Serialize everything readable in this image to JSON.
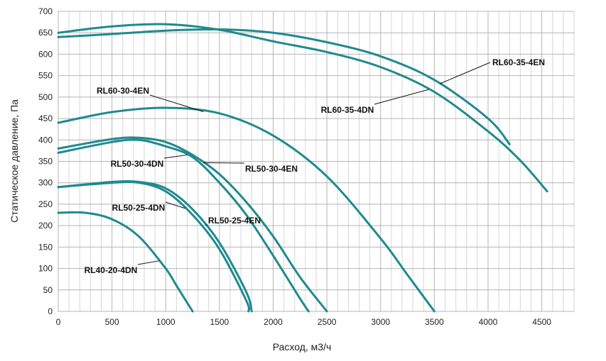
{
  "chart_data": {
    "type": "line",
    "xlabel": "Расход, м3/ч",
    "ylabel": "Статическое давление, Па",
    "xlim": [
      0,
      4800
    ],
    "ylim": [
      0,
      700
    ],
    "xticks": [
      0,
      500,
      1000,
      1500,
      2000,
      2500,
      3000,
      3500,
      4000,
      4500
    ],
    "yticks": [
      0,
      50,
      100,
      150,
      200,
      250,
      300,
      350,
      400,
      450,
      500,
      550,
      600,
      650,
      700
    ],
    "grid": true,
    "line_color": "#1f8a8f",
    "series": [
      {
        "name": "RL60-35-4EN",
        "x": [
          0,
          500,
          1000,
          1500,
          2000,
          2500,
          3000,
          3500,
          4000,
          4200
        ],
        "y": [
          640,
          647,
          655,
          658,
          650,
          628,
          595,
          540,
          450,
          390
        ]
      },
      {
        "name": "RL60-35-4DN",
        "x": [
          0,
          500,
          1000,
          1500,
          2000,
          2500,
          3000,
          3500,
          4000,
          4300,
          4550
        ],
        "y": [
          650,
          665,
          670,
          657,
          630,
          605,
          570,
          512,
          420,
          352,
          280
        ]
      },
      {
        "name": "RL60-30-4EN",
        "x": [
          0,
          500,
          1000,
          1500,
          2000,
          2500,
          3000,
          3250,
          3500
        ],
        "y": [
          440,
          465,
          475,
          462,
          410,
          315,
          170,
          85,
          0
        ]
      },
      {
        "name": "RL50-30-4DN",
        "x": [
          0,
          500,
          750,
          1000,
          1250,
          1500,
          1750,
          2000,
          2250,
          2330
        ],
        "y": [
          370,
          395,
          400,
          385,
          360,
          300,
          225,
          130,
          30,
          0
        ]
      },
      {
        "name": "RL50-30-4EN",
        "x": [
          0,
          500,
          750,
          1000,
          1250,
          1500,
          1750,
          2000,
          2250,
          2500
        ],
        "y": [
          380,
          402,
          405,
          395,
          365,
          320,
          255,
          175,
          80,
          0
        ]
      },
      {
        "name": "RL50-25-4DN",
        "x": [
          0,
          500,
          750,
          1000,
          1250,
          1500,
          1750,
          1770
        ],
        "y": [
          290,
          300,
          300,
          280,
          225,
          145,
          25,
          0
        ]
      },
      {
        "name": "RL50-25-4EN",
        "x": [
          0,
          500,
          750,
          1000,
          1250,
          1500,
          1750,
          1800
        ],
        "y": [
          290,
          302,
          302,
          287,
          238,
          160,
          45,
          0
        ]
      },
      {
        "name": "RL40-20-4DN",
        "x": [
          0,
          250,
          500,
          750,
          1000,
          1100,
          1250
        ],
        "y": [
          230,
          230,
          215,
          175,
          100,
          60,
          0
        ]
      }
    ],
    "labels": [
      {
        "text": "RL60-35-4EN",
        "series": "RL60-35-4EN",
        "at_x": 3550
      },
      {
        "text": "RL60-35-4DN",
        "series": "RL60-35-4DN",
        "at_x": 3450
      },
      {
        "text": "RL60-30-4EN",
        "series": "RL60-30-4EN",
        "at_x": 1350
      },
      {
        "text": "RL50-30-4DN",
        "series": "RL50-30-4DN",
        "at_x": 1200
      },
      {
        "text": "RL50-30-4EN",
        "series": "RL50-30-4EN",
        "at_x": 1350
      },
      {
        "text": "RL50-25-4DN",
        "series": "RL50-25-4DN",
        "at_x": 1180
      },
      {
        "text": "RL50-25-4EN",
        "series": "RL50-25-4EN",
        "at_x": 1370
      },
      {
        "text": "RL40-20-4DN",
        "series": "RL40-20-4DN",
        "at_x": 940
      }
    ]
  }
}
